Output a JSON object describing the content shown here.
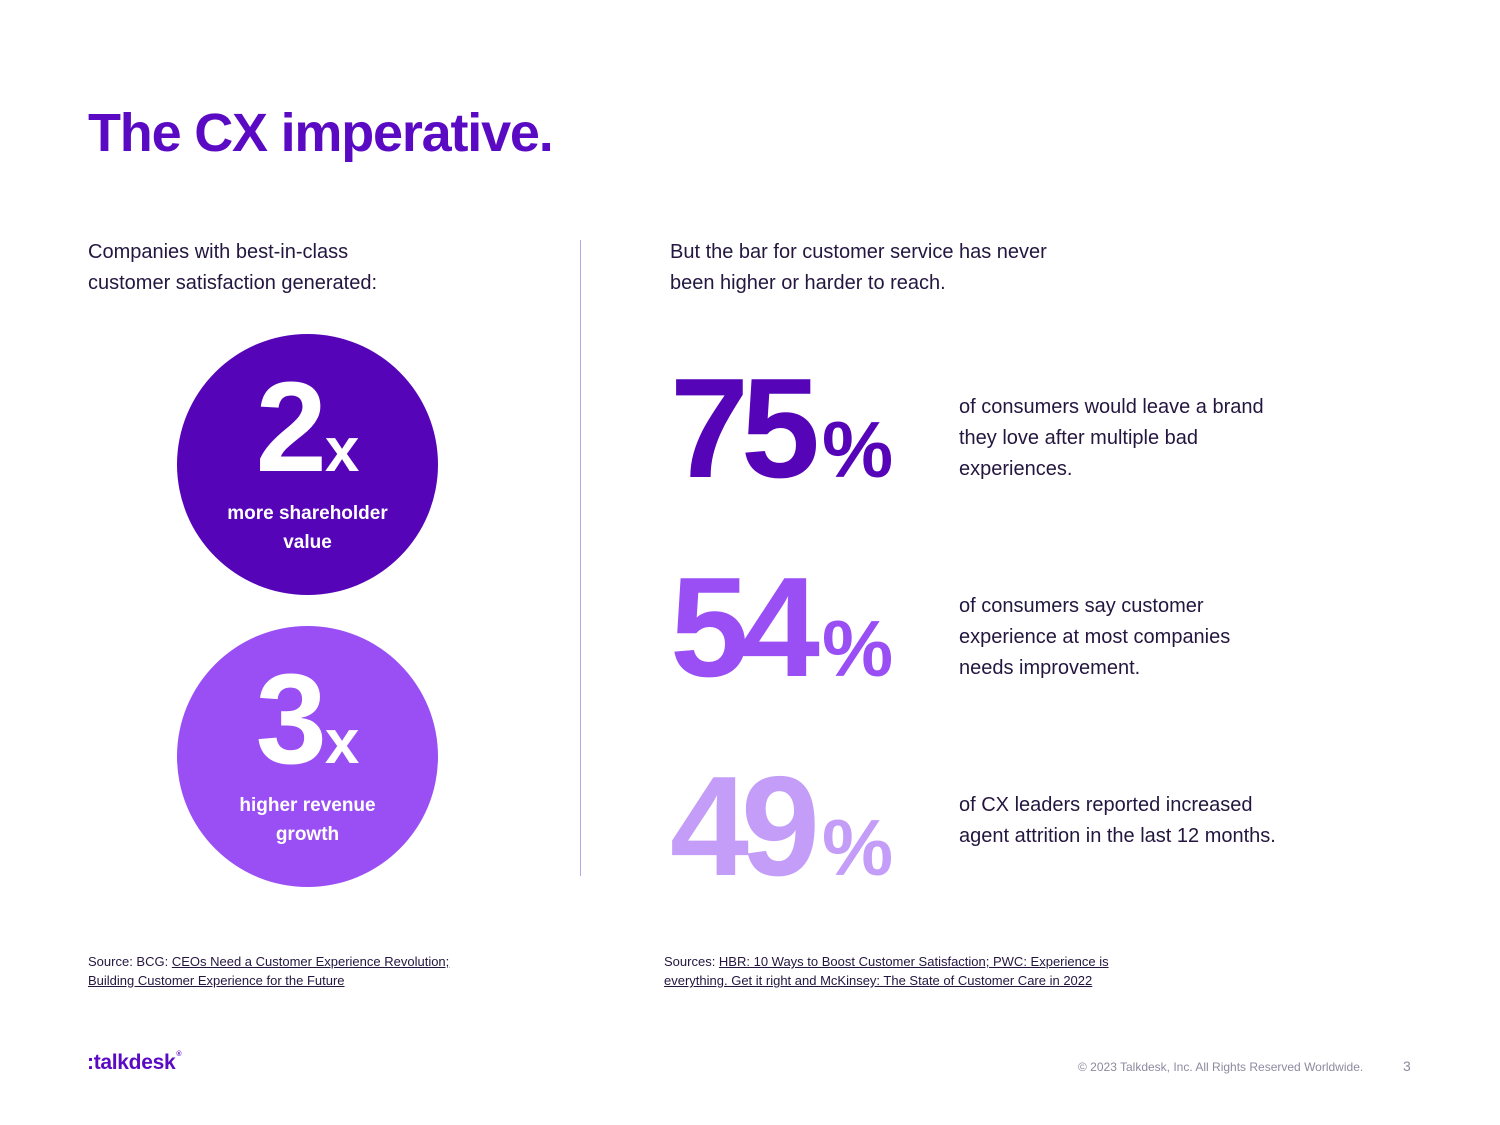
{
  "title": "The CX imperative.",
  "left": {
    "intro": "Companies with best-in-class customer satisfaction generated:",
    "circles": [
      {
        "number": "2",
        "suffix": "x",
        "caption": "more shareholder value",
        "color": "#5504b8"
      },
      {
        "number": "3",
        "suffix": "x",
        "caption": "higher revenue growth",
        "color": "#9a4ff5"
      }
    ],
    "source_prefix": "Source: BCG: ",
    "source_link": "CEOs Need a Customer Experience Revolution; Building Customer Experience for the Future"
  },
  "right": {
    "intro": "But the bar for customer service has never been higher or harder to reach.",
    "stats": [
      {
        "number": "75",
        "suffix": "%",
        "text": "of consumers would leave a brand they love after multiple bad experiences.",
        "color": "#5504b8"
      },
      {
        "number": "54",
        "suffix": "%",
        "text": "of consumers say customer experience at most companies needs improvement.",
        "color": "#9a4ff5"
      },
      {
        "number": "49",
        "suffix": "%",
        "text": "of CX leaders reported increased agent attrition in the last 12 months.",
        "color": "#c39df8"
      }
    ],
    "source_prefix": "Sources: ",
    "source_link": "HBR: 10 Ways to Boost Customer Satisfaction; PWC: Experience is everything. Get it right and McKinsey: The State of Customer Care in 2022"
  },
  "footer": {
    "logo": ":talkdesk",
    "logo_mark": "®",
    "copyright": "© 2023 Talkdesk, Inc. All Rights Reserved Worldwide.",
    "page_number": "3"
  },
  "colors": {
    "brand": "#5b0ac4",
    "text": "#24163f",
    "divider": "#b9a6ea"
  }
}
